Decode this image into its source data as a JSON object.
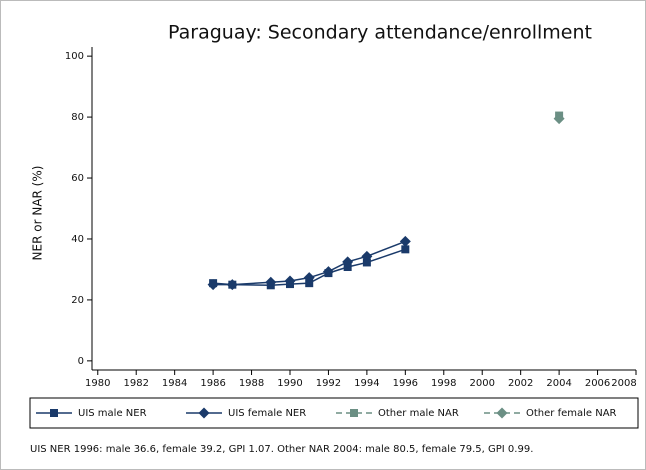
{
  "chart_data": {
    "type": "line",
    "title": "Paraguay: Secondary attendance/enrollment",
    "y_label": "NER or NAR (%)",
    "series": [
      {
        "name": "UIS male NER",
        "color": "#1a3a6a",
        "marker": "square",
        "dashed": false,
        "x": [
          1986,
          1987,
          1989,
          1990,
          1991,
          1992,
          1993,
          1994,
          1996
        ],
        "values": [
          25.5,
          25,
          24.8,
          25.2,
          25.5,
          28.8,
          30.8,
          32.3,
          36.6
        ]
      },
      {
        "name": "UIS female NER",
        "color": "#1a3a6a",
        "marker": "diamond",
        "dashed": false,
        "x": [
          1986,
          1987,
          1989,
          1990,
          1991,
          1992,
          1993,
          1994,
          1996
        ],
        "values": [
          25,
          25,
          25.8,
          26.2,
          27.3,
          29.3,
          32.5,
          34.3,
          39.2
        ]
      },
      {
        "name": "Other male NAR",
        "color": "#6b8f84",
        "marker": "square",
        "dashed": true,
        "x": [
          2004
        ],
        "values": [
          80.5
        ]
      },
      {
        "name": "Other female NAR",
        "color": "#6b8f84",
        "marker": "diamond",
        "dashed": true,
        "x": [
          2004
        ],
        "values": [
          79.5
        ]
      }
    ],
    "xlim": [
      1979.7,
      2008
    ],
    "xticks": [
      1980,
      1982,
      1984,
      1986,
      1988,
      1990,
      1992,
      1994,
      1996,
      1998,
      2000,
      2002,
      2004,
      2006,
      2008
    ],
    "ylim": [
      -3,
      103
    ],
    "yticks": [
      0,
      20,
      40,
      60,
      80,
      100
    ],
    "note": "UIS NER 1996: male 36.6, female 39.2, GPI 1.07. Other NAR 2004: male 80.5, female 79.5, GPI 0.99."
  }
}
